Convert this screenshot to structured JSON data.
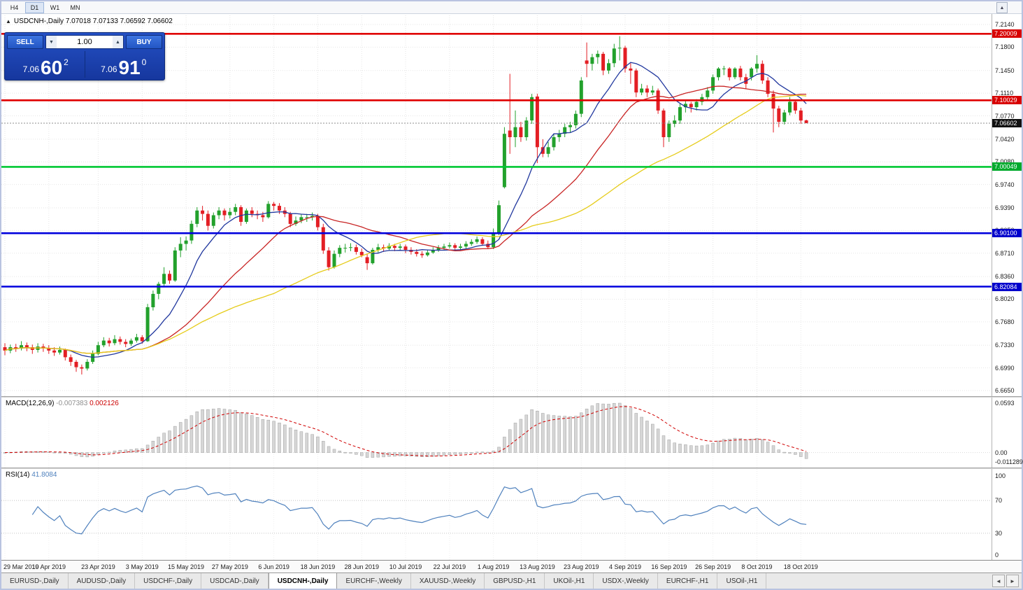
{
  "toolbar": {
    "periods": [
      "H4",
      "D1",
      "W1",
      "MN"
    ],
    "active_period": "D1"
  },
  "icons": {
    "collapse": "▲",
    "scroll_up": "▲",
    "volume_down": "▼",
    "volume_up": "▲",
    "tabs_left": "◄",
    "tabs_right": "►"
  },
  "chart": {
    "title_symbol": "USDCNH-,Daily",
    "title_ohlc": "7.07018 7.07133 7.06592 7.06602"
  },
  "one_click": {
    "sell_label": "SELL",
    "buy_label": "BUY",
    "volume": "1.00",
    "sell": {
      "small": "7.06",
      "big": "60",
      "sup": "2"
    },
    "buy": {
      "small": "7.06",
      "big": "91",
      "sup": "0"
    }
  },
  "macd": {
    "label": "MACD(12,26,9)",
    "main_value": "-0.007383",
    "signal_value": "0.002126",
    "fast": 12,
    "slow": 26,
    "signal": 9,
    "axis": [
      {
        "label": "0.0593",
        "v": 0.0593
      },
      {
        "label": "0.00",
        "v": 0
      },
      {
        "label": "-0.011289",
        "v": -0.011289
      }
    ]
  },
  "rsi": {
    "label": "RSI(14)",
    "value": "41.8084",
    "period": 14,
    "axis": [
      {
        "label": "100",
        "v": 100
      },
      {
        "label": "70",
        "v": 70
      },
      {
        "label": "30",
        "v": 30
      },
      {
        "label": "0",
        "v": 0
      }
    ],
    "levels": [
      70,
      30
    ],
    "line_color": "#4f81bd"
  },
  "tabs": {
    "items": [
      "EURUSD-,Daily",
      "AUDUSD-,Daily",
      "USDCHF-,Daily",
      "USDCAD-,Daily",
      "USDCNH-,Daily",
      "EURCHF-,Weekly",
      "XAUUSD-,Weekly",
      "GBPUSD-,H1",
      "UKOil-,H1",
      "USDX-,Weekly",
      "EURCHF-,H1",
      "USOil-,H1"
    ],
    "active": "USDCNH-,Daily"
  },
  "chart_data": {
    "type": "candlestick",
    "symbol": "USDCNH-",
    "timeframe": "Daily",
    "current_bar": {
      "open": 7.07018,
      "high": 7.07133,
      "low": 7.06592,
      "close": 7.06602
    },
    "ylim": [
      6.665,
      7.214
    ],
    "up_color": "#22a12c",
    "down_color": "#e31e24",
    "price_ticks": [
      "7.2140",
      "7.1800",
      "7.1450",
      "7.1110",
      "7.0770",
      "7.0420",
      "7.0080",
      "6.9740",
      "6.9390",
      "6.9050",
      "6.8710",
      "6.8360",
      "6.8020",
      "6.7680",
      "6.7330",
      "6.6990",
      "6.6650"
    ],
    "hlines": [
      {
        "price": 7.20009,
        "color": "#e00000",
        "label": "7.20009",
        "badge": "#d80000"
      },
      {
        "price": 7.10029,
        "color": "#e00000",
        "label": "7.10029",
        "badge": "#d80000"
      },
      {
        "price": 7.00049,
        "color": "#00c833",
        "label": "7.00049",
        "badge": "#00aa2c"
      },
      {
        "price": 6.901,
        "color": "#0000dd",
        "label": "6.90100",
        "badge": "#0000cc"
      },
      {
        "price": 6.82084,
        "color": "#0000dd",
        "label": "6.82084",
        "badge": "#0000cc"
      }
    ],
    "bid_line": {
      "price": 7.06602,
      "label": "7.06602",
      "badge": "#111111"
    },
    "ma": [
      {
        "period": 10,
        "color": "#20379e"
      },
      {
        "period": 25,
        "color": "#c82424"
      },
      {
        "period": 50,
        "color": "#e6cc1a"
      }
    ],
    "date_labels": [
      {
        "i": 0,
        "label": "29 Mar 2019"
      },
      {
        "i": 8,
        "label": "10 Apr 2019"
      },
      {
        "i": 17,
        "label": "23 Apr 2019"
      },
      {
        "i": 25,
        "label": "3 May 2019"
      },
      {
        "i": 33,
        "label": "15 May 2019"
      },
      {
        "i": 41,
        "label": "27 May 2019"
      },
      {
        "i": 49,
        "label": "6 Jun 2019"
      },
      {
        "i": 57,
        "label": "18 Jun 2019"
      },
      {
        "i": 65,
        "label": "28 Jun 2019"
      },
      {
        "i": 73,
        "label": "10 Jul 2019"
      },
      {
        "i": 81,
        "label": "22 Jul 2019"
      },
      {
        "i": 89,
        "label": "1 Aug 2019"
      },
      {
        "i": 97,
        "label": "13 Aug 2019"
      },
      {
        "i": 105,
        "label": "23 Aug 2019"
      },
      {
        "i": 113,
        "label": "4 Sep 2019"
      },
      {
        "i": 121,
        "label": "16 Sep 2019"
      },
      {
        "i": 129,
        "label": "26 Sep 2019"
      },
      {
        "i": 137,
        "label": "8 Oct 2019"
      },
      {
        "i": 145,
        "label": "18 Oct 2019"
      }
    ],
    "candles": [
      [
        6.73,
        6.736,
        6.718,
        6.725
      ],
      [
        6.725,
        6.734,
        6.721,
        6.73
      ],
      [
        6.73,
        6.735,
        6.723,
        6.728
      ],
      [
        6.728,
        6.739,
        6.725,
        6.733
      ],
      [
        6.733,
        6.737,
        6.724,
        6.73
      ],
      [
        6.73,
        6.734,
        6.72,
        6.726
      ],
      [
        6.726,
        6.736,
        6.722,
        6.731
      ],
      [
        6.731,
        6.735,
        6.723,
        6.728
      ],
      [
        6.728,
        6.733,
        6.72,
        6.725
      ],
      [
        6.725,
        6.73,
        6.717,
        6.722
      ],
      [
        6.722,
        6.731,
        6.719,
        6.726
      ],
      [
        6.726,
        6.728,
        6.71,
        6.715
      ],
      [
        6.715,
        6.719,
        6.702,
        6.708
      ],
      [
        6.708,
        6.711,
        6.693,
        6.7
      ],
      [
        6.7,
        6.704,
        6.689,
        6.698
      ],
      [
        6.698,
        6.712,
        6.695,
        6.708
      ],
      [
        6.708,
        6.725,
        6.705,
        6.72
      ],
      [
        6.72,
        6.738,
        6.718,
        6.733
      ],
      [
        6.733,
        6.745,
        6.73,
        6.74
      ],
      [
        6.74,
        6.744,
        6.731,
        6.736
      ],
      [
        6.736,
        6.748,
        6.733,
        6.742
      ],
      [
        6.742,
        6.746,
        6.734,
        6.738
      ],
      [
        6.738,
        6.742,
        6.73,
        6.735
      ],
      [
        6.735,
        6.743,
        6.732,
        6.74
      ],
      [
        6.74,
        6.75,
        6.737,
        6.745
      ],
      [
        6.745,
        6.748,
        6.735,
        6.739
      ],
      [
        6.739,
        6.795,
        6.738,
        6.79
      ],
      [
        6.79,
        6.815,
        6.785,
        6.81
      ],
      [
        6.81,
        6.828,
        6.802,
        6.825
      ],
      [
        6.825,
        6.85,
        6.82,
        6.84
      ],
      [
        6.84,
        6.845,
        6.825,
        6.83
      ],
      [
        6.83,
        6.88,
        6.828,
        6.875
      ],
      [
        6.875,
        6.895,
        6.865,
        6.885
      ],
      [
        6.885,
        6.896,
        6.875,
        6.89
      ],
      [
        6.89,
        6.92,
        6.885,
        6.915
      ],
      [
        6.915,
        6.94,
        6.91,
        6.935
      ],
      [
        6.935,
        6.942,
        6.92,
        6.93
      ],
      [
        6.93,
        6.935,
        6.905,
        6.912
      ],
      [
        6.912,
        6.932,
        6.908,
        6.928
      ],
      [
        6.928,
        6.94,
        6.922,
        6.935
      ],
      [
        6.935,
        6.938,
        6.92,
        6.928
      ],
      [
        6.928,
        6.939,
        6.923,
        6.933
      ],
      [
        6.933,
        6.945,
        6.928,
        6.94
      ],
      [
        6.94,
        6.943,
        6.912,
        6.918
      ],
      [
        6.918,
        6.938,
        6.915,
        6.935
      ],
      [
        6.935,
        6.94,
        6.925,
        6.93
      ],
      [
        6.93,
        6.935,
        6.922,
        6.928
      ],
      [
        6.928,
        6.933,
        6.918,
        6.925
      ],
      [
        6.925,
        6.949,
        6.923,
        6.945
      ],
      [
        6.945,
        6.948,
        6.935,
        6.942
      ],
      [
        6.942,
        6.946,
        6.93,
        6.935
      ],
      [
        6.935,
        6.94,
        6.925,
        6.93
      ],
      [
        6.93,
        6.933,
        6.91,
        6.915
      ],
      [
        6.915,
        6.926,
        6.912,
        6.92
      ],
      [
        6.92,
        6.929,
        6.916,
        6.925
      ],
      [
        6.925,
        6.93,
        6.918,
        6.925
      ],
      [
        6.925,
        6.932,
        6.92,
        6.927
      ],
      [
        6.927,
        6.93,
        6.905,
        6.91
      ],
      [
        6.91,
        6.915,
        6.87,
        6.875
      ],
      [
        6.875,
        6.88,
        6.845,
        6.85
      ],
      [
        6.85,
        6.875,
        6.848,
        6.87
      ],
      [
        6.87,
        6.883,
        6.865,
        6.879
      ],
      [
        6.879,
        6.885,
        6.872,
        6.879
      ],
      [
        6.879,
        6.886,
        6.874,
        6.88
      ],
      [
        6.88,
        6.884,
        6.869,
        6.873
      ],
      [
        6.873,
        6.878,
        6.865,
        6.868
      ],
      [
        6.865,
        6.87,
        6.846,
        6.856
      ],
      [
        6.856,
        6.879,
        6.854,
        6.876
      ],
      [
        6.876,
        6.885,
        6.872,
        6.88
      ],
      [
        6.88,
        6.884,
        6.873,
        6.878
      ],
      [
        6.878,
        6.886,
        6.875,
        6.882
      ],
      [
        6.882,
        6.885,
        6.874,
        6.879
      ],
      [
        6.879,
        6.885,
        6.876,
        6.881
      ],
      [
        6.881,
        6.884,
        6.871,
        6.876
      ],
      [
        6.876,
        6.88,
        6.869,
        6.873
      ],
      [
        6.873,
        6.877,
        6.866,
        6.87
      ],
      [
        6.87,
        6.874,
        6.864,
        6.868
      ],
      [
        6.868,
        6.876,
        6.866,
        6.872
      ],
      [
        6.872,
        6.88,
        6.87,
        6.876
      ],
      [
        6.876,
        6.883,
        6.873,
        6.879
      ],
      [
        6.879,
        6.885,
        6.876,
        6.881
      ],
      [
        6.881,
        6.887,
        6.878,
        6.883
      ],
      [
        6.883,
        6.886,
        6.875,
        6.879
      ],
      [
        6.879,
        6.885,
        6.876,
        6.881
      ],
      [
        6.881,
        6.889,
        6.878,
        6.885
      ],
      [
        6.885,
        6.892,
        6.882,
        6.888
      ],
      [
        6.888,
        6.896,
        6.885,
        6.892
      ],
      [
        6.892,
        6.895,
        6.882,
        6.885
      ],
      [
        6.885,
        6.89,
        6.877,
        6.88
      ],
      [
        6.88,
        6.908,
        6.877,
        6.9
      ],
      [
        6.9,
        6.95,
        6.898,
        6.943
      ],
      [
        6.97,
        7.06,
        6.968,
        7.05
      ],
      [
        7.055,
        7.14,
        7.02,
        7.045
      ],
      [
        7.045,
        7.085,
        7.03,
        7.06
      ],
      [
        7.06,
        7.068,
        7.038,
        7.045
      ],
      [
        7.045,
        7.075,
        7.04,
        7.07
      ],
      [
        7.07,
        7.11,
        7.065,
        7.105
      ],
      [
        7.106,
        7.11,
        7.006,
        7.03
      ],
      [
        7.03,
        7.042,
        7.015,
        7.02
      ],
      [
        7.02,
        7.038,
        7.015,
        7.03
      ],
      [
        7.03,
        7.05,
        7.025,
        7.045
      ],
      [
        7.045,
        7.056,
        7.038,
        7.05
      ],
      [
        7.05,
        7.065,
        7.045,
        7.06
      ],
      [
        7.06,
        7.068,
        7.052,
        7.063
      ],
      [
        7.063,
        7.085,
        7.058,
        7.08
      ],
      [
        7.08,
        7.135,
        7.075,
        7.13
      ],
      [
        7.16,
        7.187,
        7.135,
        7.155
      ],
      [
        7.155,
        7.17,
        7.145,
        7.165
      ],
      [
        7.165,
        7.175,
        7.155,
        7.17
      ],
      [
        7.17,
        7.173,
        7.138,
        7.145
      ],
      [
        7.145,
        7.162,
        7.14,
        7.156
      ],
      [
        7.156,
        7.185,
        7.15,
        7.178
      ],
      [
        7.178,
        7.1965,
        7.16,
        7.179
      ],
      [
        7.179,
        7.182,
        7.142,
        7.148
      ],
      [
        7.148,
        7.156,
        7.125,
        7.145
      ],
      [
        7.145,
        7.148,
        7.105,
        7.112
      ],
      [
        7.112,
        7.125,
        7.108,
        7.118
      ],
      [
        7.118,
        7.123,
        7.105,
        7.112
      ],
      [
        7.112,
        7.122,
        7.108,
        7.115
      ],
      [
        7.115,
        7.118,
        7.08,
        7.085
      ],
      [
        7.085,
        7.088,
        7.03,
        7.045
      ],
      [
        7.045,
        7.07,
        7.038,
        7.065
      ],
      [
        7.065,
        7.078,
        7.06,
        7.07
      ],
      [
        7.07,
        7.095,
        7.065,
        7.09
      ],
      [
        7.09,
        7.099,
        7.082,
        7.095
      ],
      [
        7.095,
        7.098,
        7.082,
        7.09
      ],
      [
        7.09,
        7.102,
        7.085,
        7.098
      ],
      [
        7.098,
        7.11,
        7.093,
        7.105
      ],
      [
        7.105,
        7.12,
        7.1,
        7.115
      ],
      [
        7.115,
        7.139,
        7.11,
        7.135
      ],
      [
        7.135,
        7.15,
        7.13,
        7.148
      ],
      [
        7.148,
        7.152,
        7.138,
        7.148
      ],
      [
        7.148,
        7.15,
        7.13,
        7.135
      ],
      [
        7.135,
        7.15,
        7.132,
        7.148
      ],
      [
        7.148,
        7.152,
        7.13,
        7.135
      ],
      [
        7.135,
        7.14,
        7.118,
        7.125
      ],
      [
        7.135,
        7.15,
        7.13,
        7.148
      ],
      [
        7.148,
        7.168,
        7.142,
        7.155
      ],
      [
        7.155,
        7.16,
        7.125,
        7.13
      ],
      [
        7.13,
        7.135,
        7.105,
        7.11
      ],
      [
        7.11,
        7.115,
        7.052,
        7.088
      ],
      [
        7.088,
        7.092,
        7.06,
        7.068
      ],
      [
        7.068,
        7.086,
        7.064,
        7.082
      ],
      [
        7.082,
        7.105,
        7.078,
        7.098
      ],
      [
        7.098,
        7.101,
        7.08,
        7.085
      ],
      [
        7.085,
        7.089,
        7.065,
        7.07
      ],
      [
        7.07018,
        7.07133,
        7.06592,
        7.06602
      ]
    ]
  }
}
